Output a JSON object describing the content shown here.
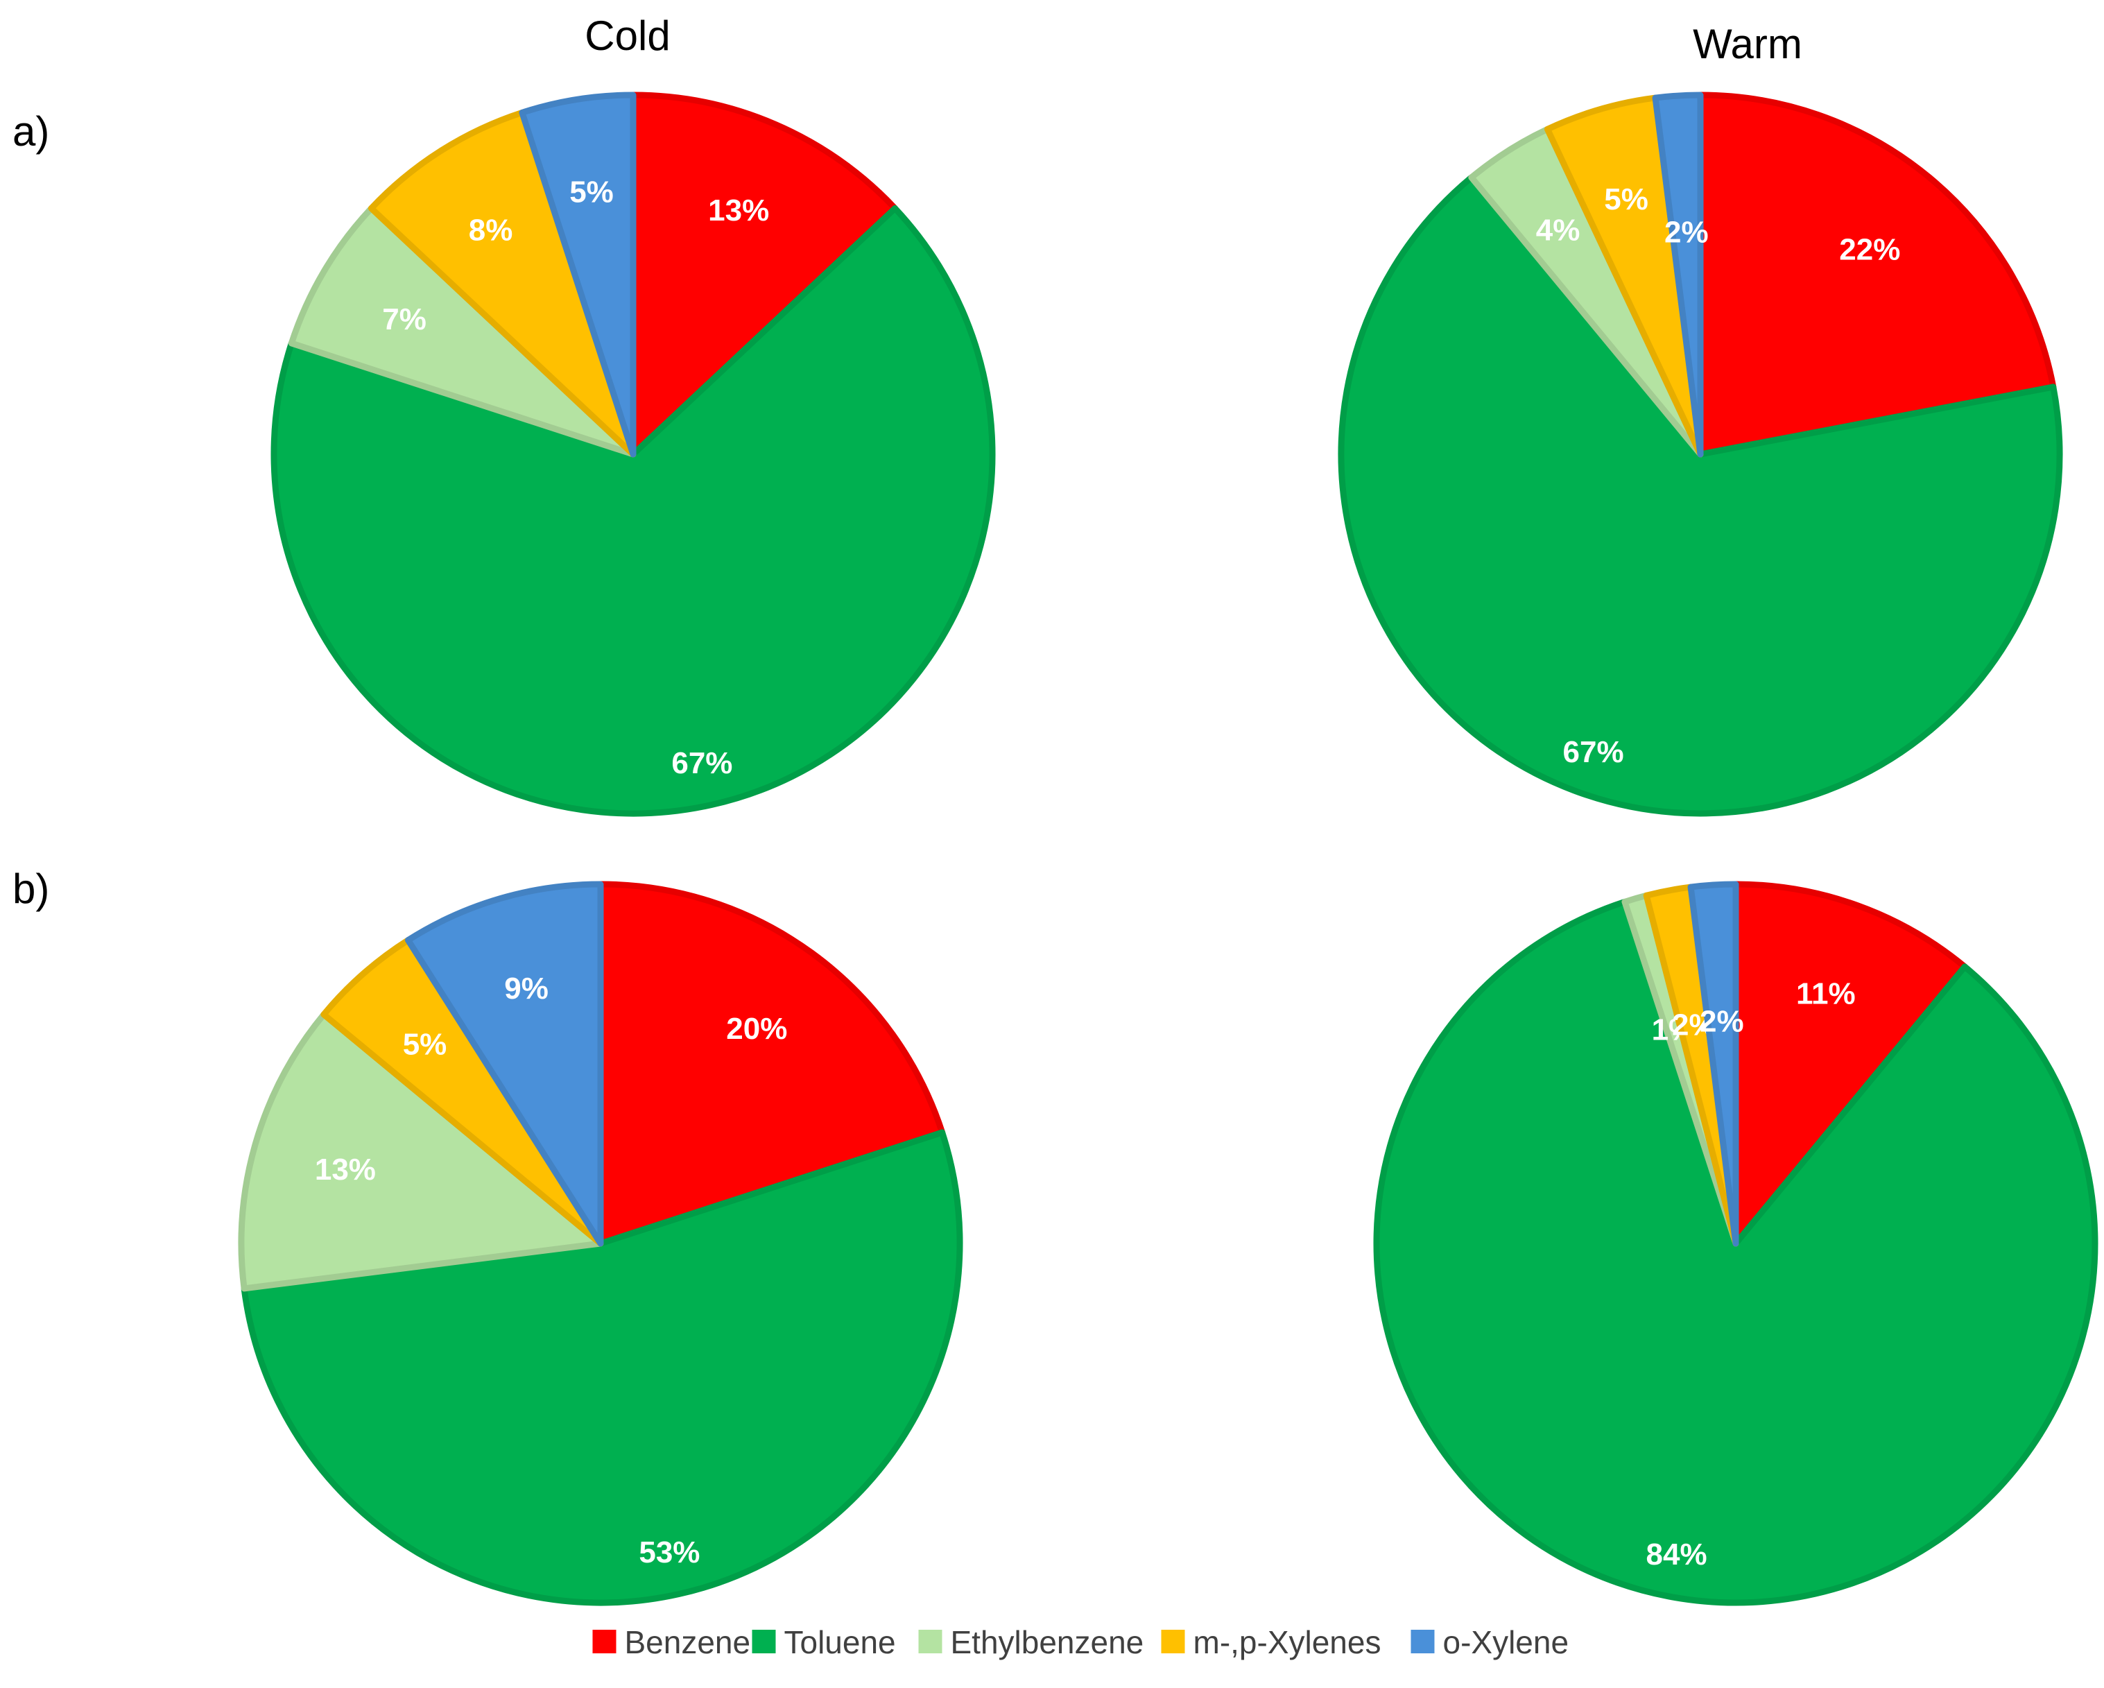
{
  "column_titles": [
    "Cold",
    "Warm"
  ],
  "row_labels": [
    "a)",
    "b)"
  ],
  "colors": {
    "Benzene": "#ff0000",
    "Toluene": "#00b050",
    "Ethylbenzene": "#b4e3a2",
    "m-,p-Xylenes": "#ffc000",
    "o-Xylene": "#4a90d9"
  },
  "legend": {
    "entries": [
      "Benzene",
      "Toluene",
      "Ethylbenzene",
      "m-,p-Xylenes",
      "o-Xylene"
    ],
    "placement": "bottom-center"
  },
  "chart_data": [
    {
      "type": "pie",
      "row": "a)",
      "title": "Cold",
      "categories": [
        "Benzene",
        "Toluene",
        "Ethylbenzene",
        "m-,p-Xylenes",
        "o-Xylene"
      ],
      "values": [
        13,
        67,
        7,
        8,
        5
      ],
      "labels": [
        "13%",
        "67%",
        "7%",
        "8%",
        "5%"
      ]
    },
    {
      "type": "pie",
      "row": "a)",
      "title": "Warm",
      "categories": [
        "Benzene",
        "Toluene",
        "Ethylbenzene",
        "m-,p-Xylenes",
        "o-Xylene"
      ],
      "values": [
        22,
        67,
        4,
        5,
        2
      ],
      "labels": [
        "22%",
        "67%",
        "4%",
        "5%",
        "2%"
      ]
    },
    {
      "type": "pie",
      "row": "b)",
      "title": "Cold",
      "categories": [
        "Benzene",
        "Toluene",
        "Ethylbenzene",
        "m-,p-Xylenes",
        "o-Xylene"
      ],
      "values": [
        20,
        53,
        13,
        5,
        9
      ],
      "labels": [
        "20%",
        "53%",
        "13%",
        "5%",
        "9%"
      ]
    },
    {
      "type": "pie",
      "row": "b)",
      "title": "Warm",
      "categories": [
        "Benzene",
        "Toluene",
        "Ethylbenzene",
        "m-,p-Xylenes",
        "o-Xylene"
      ],
      "values": [
        11,
        84,
        1,
        2,
        2
      ],
      "labels": [
        "11%",
        "84%",
        "1%",
        "2%",
        "2%"
      ]
    }
  ]
}
